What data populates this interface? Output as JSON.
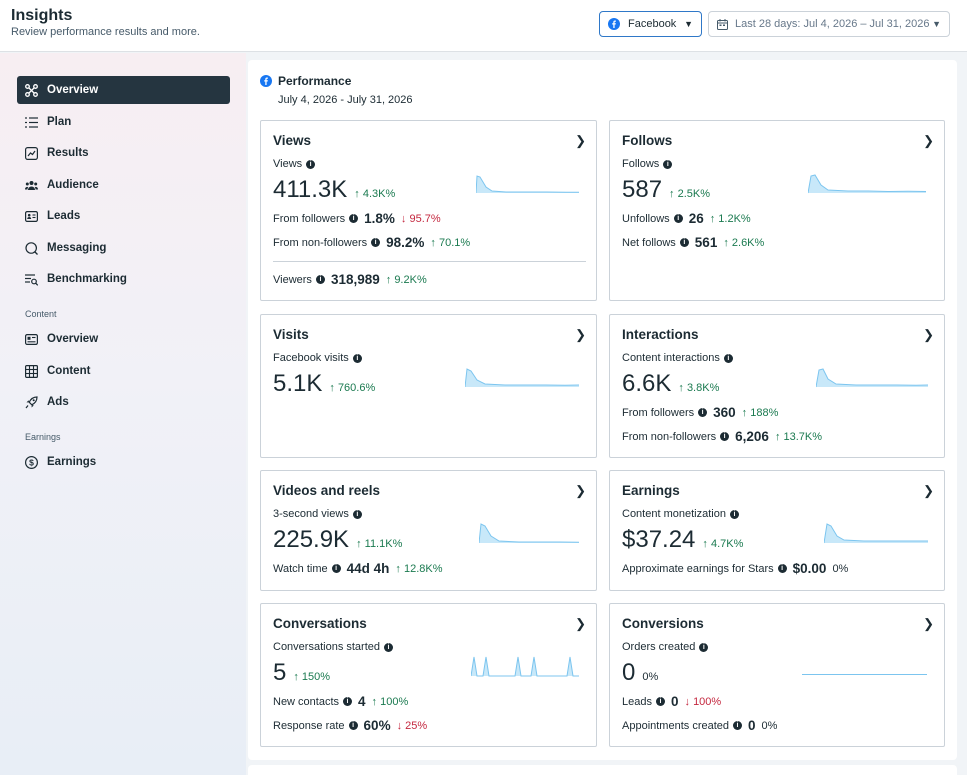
{
  "header": {
    "title": "Insights",
    "subtitle": "Review performance results and more.",
    "platform": "Facebook",
    "date_range": "Last 28 days: Jul 4, 2026 – Jul 31, 2026"
  },
  "sidebar": {
    "items": [
      {
        "label": "Overview",
        "icon": "hub-icon"
      },
      {
        "label": "Plan",
        "icon": "list-icon"
      },
      {
        "label": "Results",
        "icon": "trend-icon"
      },
      {
        "label": "Audience",
        "icon": "people-icon"
      },
      {
        "label": "Leads",
        "icon": "id-card-icon"
      },
      {
        "label": "Messaging",
        "icon": "chat-icon"
      },
      {
        "label": "Benchmarking",
        "icon": "benchmark-icon"
      }
    ],
    "content_section": "Content",
    "content_items": [
      {
        "label": "Overview",
        "icon": "overview-icon"
      },
      {
        "label": "Content",
        "icon": "grid-icon"
      },
      {
        "label": "Ads",
        "icon": "rocket-icon"
      }
    ],
    "earnings_section": "Earnings",
    "earnings_items": [
      {
        "label": "Earnings",
        "icon": "dollar-icon"
      }
    ]
  },
  "performance": {
    "title": "Performance",
    "range": "July 4, 2026 - July 31, 2026"
  },
  "cards": {
    "views": {
      "title": "Views",
      "label": "Views",
      "value": "411.3K",
      "delta": "4.3K%",
      "rows": [
        {
          "label": "From followers",
          "value": "1.8%",
          "delta": "95.7%",
          "dir": "down"
        },
        {
          "label": "From non-followers",
          "value": "98.2%",
          "delta": "70.1%",
          "dir": "up"
        },
        {
          "label": "Viewers",
          "value": "318,989",
          "delta": "9.2K%",
          "dir": "up"
        }
      ]
    },
    "follows": {
      "title": "Follows",
      "label": "Follows",
      "value": "587",
      "delta": "2.5K%",
      "rows": [
        {
          "label": "Unfollows",
          "value": "26",
          "delta": "1.2K%",
          "dir": "up"
        },
        {
          "label": "Net follows",
          "value": "561",
          "delta": "2.6K%",
          "dir": "up"
        }
      ]
    },
    "visits": {
      "title": "Visits",
      "label": "Facebook visits",
      "value": "5.1K",
      "delta": "760.6%"
    },
    "interactions": {
      "title": "Interactions",
      "label": "Content interactions",
      "value": "6.6K",
      "delta": "3.8K%",
      "rows": [
        {
          "label": "From followers",
          "value": "360",
          "delta": "188%",
          "dir": "up"
        },
        {
          "label": "From non-followers",
          "value": "6,206",
          "delta": "13.7K%",
          "dir": "up"
        }
      ]
    },
    "videos": {
      "title": "Videos and reels",
      "label": "3-second views",
      "value": "225.9K",
      "delta": "11.1K%",
      "rows": [
        {
          "label": "Watch time",
          "value": "44d 4h",
          "delta": "12.8K%",
          "dir": "up"
        }
      ]
    },
    "earnings": {
      "title": "Earnings",
      "label": "Content monetization",
      "value": "$37.24",
      "delta": "4.7K%",
      "rows": [
        {
          "label": "Approximate earnings for Stars",
          "value": "$0.00",
          "delta": "0%",
          "dir": "neutral"
        }
      ]
    },
    "conversations": {
      "title": "Conversations",
      "label": "Conversations started",
      "value": "5",
      "delta": "150%",
      "rows": [
        {
          "label": "New contacts",
          "value": "4",
          "delta": "100%",
          "dir": "up"
        },
        {
          "label": "Response rate",
          "value": "60%",
          "delta": "25%",
          "dir": "down"
        }
      ]
    },
    "conversions": {
      "title": "Conversions",
      "label": "Orders created",
      "value": "0",
      "delta": "0%",
      "rows": [
        {
          "label": "Leads",
          "value": "0",
          "delta": "100%",
          "dir": "down"
        },
        {
          "label": "Appointments created",
          "value": "0",
          "delta": "0%",
          "dir": "neutral"
        }
      ]
    }
  },
  "colors": {
    "accent": "#2f78c8",
    "sidebar_active": "#253540",
    "up": "#1b7a50",
    "down": "#c4283f",
    "spark_fill": "#c8e8f9",
    "spark_line": "#7cc5ef"
  }
}
